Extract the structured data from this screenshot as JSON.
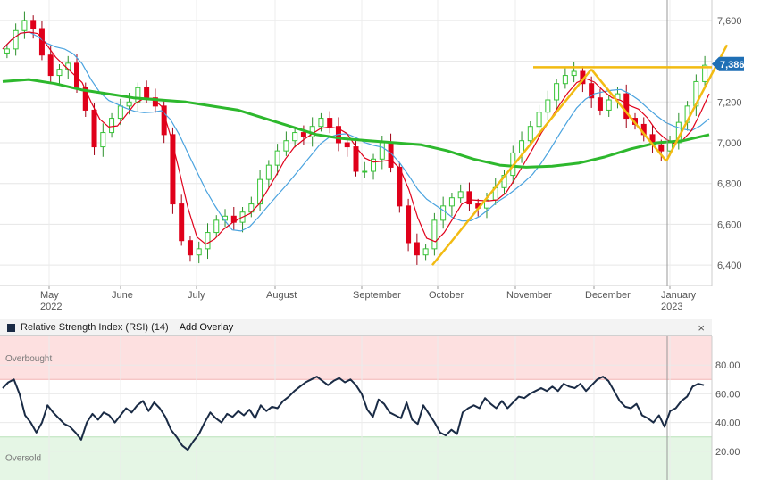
{
  "chart_data": [
    {
      "type": "candlestick",
      "x_ticks": [
        "May\n2022",
        "June",
        "July",
        "August",
        "September",
        "October",
        "November",
        "December",
        "January\n2023"
      ],
      "y_ticks": [
        "7,600",
        "7,400",
        "7,200",
        "7,000",
        "6,800",
        "6,600",
        "6,400"
      ],
      "ylim": [
        6300,
        7700
      ],
      "last_price_label": "7,386",
      "last_price": 7386,
      "grid": true,
      "overlays": [
        {
          "kind": "sma-long",
          "color": "#2db82d",
          "values": [
            7300,
            7310,
            7290,
            7260,
            7240,
            7220,
            7210,
            7200,
            7180,
            7160,
            7120,
            7080,
            7040,
            7020,
            7010,
            7000,
            6990,
            6960,
            6920,
            6890,
            6880,
            6885,
            6900,
            6930,
            6970,
            7000,
            7010,
            7040
          ]
        },
        {
          "kind": "sma-short",
          "color": "#e0001a"
        },
        {
          "kind": "sma-mid",
          "color": "#4aa3df"
        }
      ],
      "candles": [
        7460,
        7550,
        7600,
        7560,
        7430,
        7330,
        7360,
        7390,
        7270,
        7160,
        6980,
        7050,
        7120,
        7180,
        7200,
        7270,
        7220,
        7180,
        7040,
        6700,
        6520,
        6450,
        6480,
        6560,
        6620,
        6640,
        6610,
        6660,
        6700,
        6820,
        6890,
        6960,
        7010,
        7050,
        7030,
        7080,
        7120,
        7080,
        7000,
        6980,
        6860,
        6860,
        6920,
        7000,
        6880,
        6690,
        6510,
        6450,
        6480,
        6620,
        6690,
        6730,
        6760,
        6700,
        6680,
        6720,
        6780,
        6840,
        6950,
        7010,
        7080,
        7150,
        7210,
        7290,
        7330,
        7350,
        7290,
        7220,
        7160,
        7210,
        7240,
        7120,
        7090,
        7040,
        6990,
        6960,
        7000,
        7100,
        7180,
        7300,
        7380
      ]
    },
    {
      "type": "line",
      "title": "Relative Strength Index (RSI) (14)",
      "add_overlay_label": "Add Overlay",
      "y_ticks": [
        "80.00",
        "60.00",
        "40.00",
        "20.00"
      ],
      "ylim": [
        0,
        100
      ],
      "zones": [
        {
          "label": "Overbought",
          "from": 70,
          "to": 100,
          "color": "#fde0e0"
        },
        {
          "label": "Oversold",
          "from": 0,
          "to": 30,
          "color": "#e5f6e5"
        }
      ],
      "series": [
        {
          "color": "#1a2b45",
          "values": [
            64,
            68,
            70,
            60,
            45,
            40,
            33,
            40,
            52,
            47,
            43,
            39,
            37,
            33,
            28,
            40,
            46,
            42,
            47,
            45,
            40,
            45,
            50,
            47,
            52,
            55,
            48,
            54,
            50,
            44,
            35,
            30,
            24,
            21,
            27,
            32,
            40,
            47,
            43,
            40,
            46,
            44,
            48,
            45,
            49,
            43,
            52,
            48,
            51,
            50,
            55,
            58,
            62,
            65,
            68,
            70,
            72,
            69,
            66,
            69,
            71,
            68,
            70,
            66,
            60,
            49,
            44,
            56,
            53,
            47,
            45,
            43,
            54,
            42,
            39,
            52,
            46,
            40,
            33,
            31,
            35,
            32,
            47,
            50,
            52,
            50,
            57,
            53,
            50,
            55,
            50,
            54,
            58,
            57,
            60,
            62,
            64,
            62,
            65,
            62,
            67,
            65,
            64,
            67,
            62,
            66,
            70,
            72,
            69,
            62,
            55,
            51,
            50,
            53,
            45,
            43,
            40,
            45,
            37,
            48,
            50,
            55,
            58,
            65,
            67,
            66
          ]
        }
      ]
    }
  ],
  "ui": {
    "rsi_header_close": "×"
  }
}
